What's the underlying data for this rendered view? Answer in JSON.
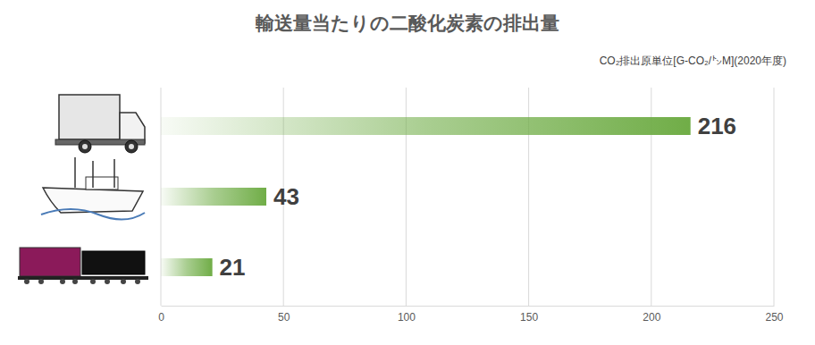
{
  "chart_data": {
    "type": "bar",
    "orientation": "horizontal",
    "title": "輸送量当たりの二酸化炭素の排出量",
    "subtitle": "CO₂排出原単位[G-CO₂/㌧M](2020年度)",
    "categories": [
      null,
      null,
      null
    ],
    "values": [
      216,
      43,
      21
    ],
    "color": "#70ad47",
    "xlim": [
      0,
      250
    ],
    "xticks": [
      0,
      50,
      100,
      150,
      200,
      250
    ],
    "grid": true,
    "data_labels": true
  }
}
